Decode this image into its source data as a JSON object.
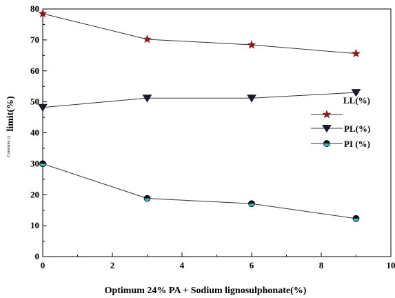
{
  "chart_data": {
    "type": "line",
    "xlabel": "Optimum 24% PA + Sodium lignosulphonate(%)",
    "ylabel_small": "Consisten cy",
    "ylabel_main": "limit(%)",
    "xlim": [
      0,
      10
    ],
    "ylim": [
      0,
      80
    ],
    "xticks": [
      0,
      2,
      4,
      6,
      8,
      10
    ],
    "yticks": [
      0,
      10,
      20,
      30,
      40,
      50,
      60,
      70,
      80
    ],
    "grid": false,
    "legend_position": "right",
    "x": [
      0,
      3,
      6,
      9
    ],
    "series": [
      {
        "name": "LL(%)",
        "values": [
          78.5,
          70.2,
          68.4,
          65.6
        ],
        "marker": "star",
        "color": "#8b1a1a"
      },
      {
        "name": "PL(%)",
        "values": [
          48.2,
          51.2,
          51.2,
          53.0
        ],
        "marker": "triangle-down",
        "color": "#1a1a2e"
      },
      {
        "name": "PI (%)",
        "values": [
          30.0,
          18.8,
          17.1,
          12.3
        ],
        "marker": "circle-half",
        "color": "#3ab7c0"
      }
    ]
  }
}
